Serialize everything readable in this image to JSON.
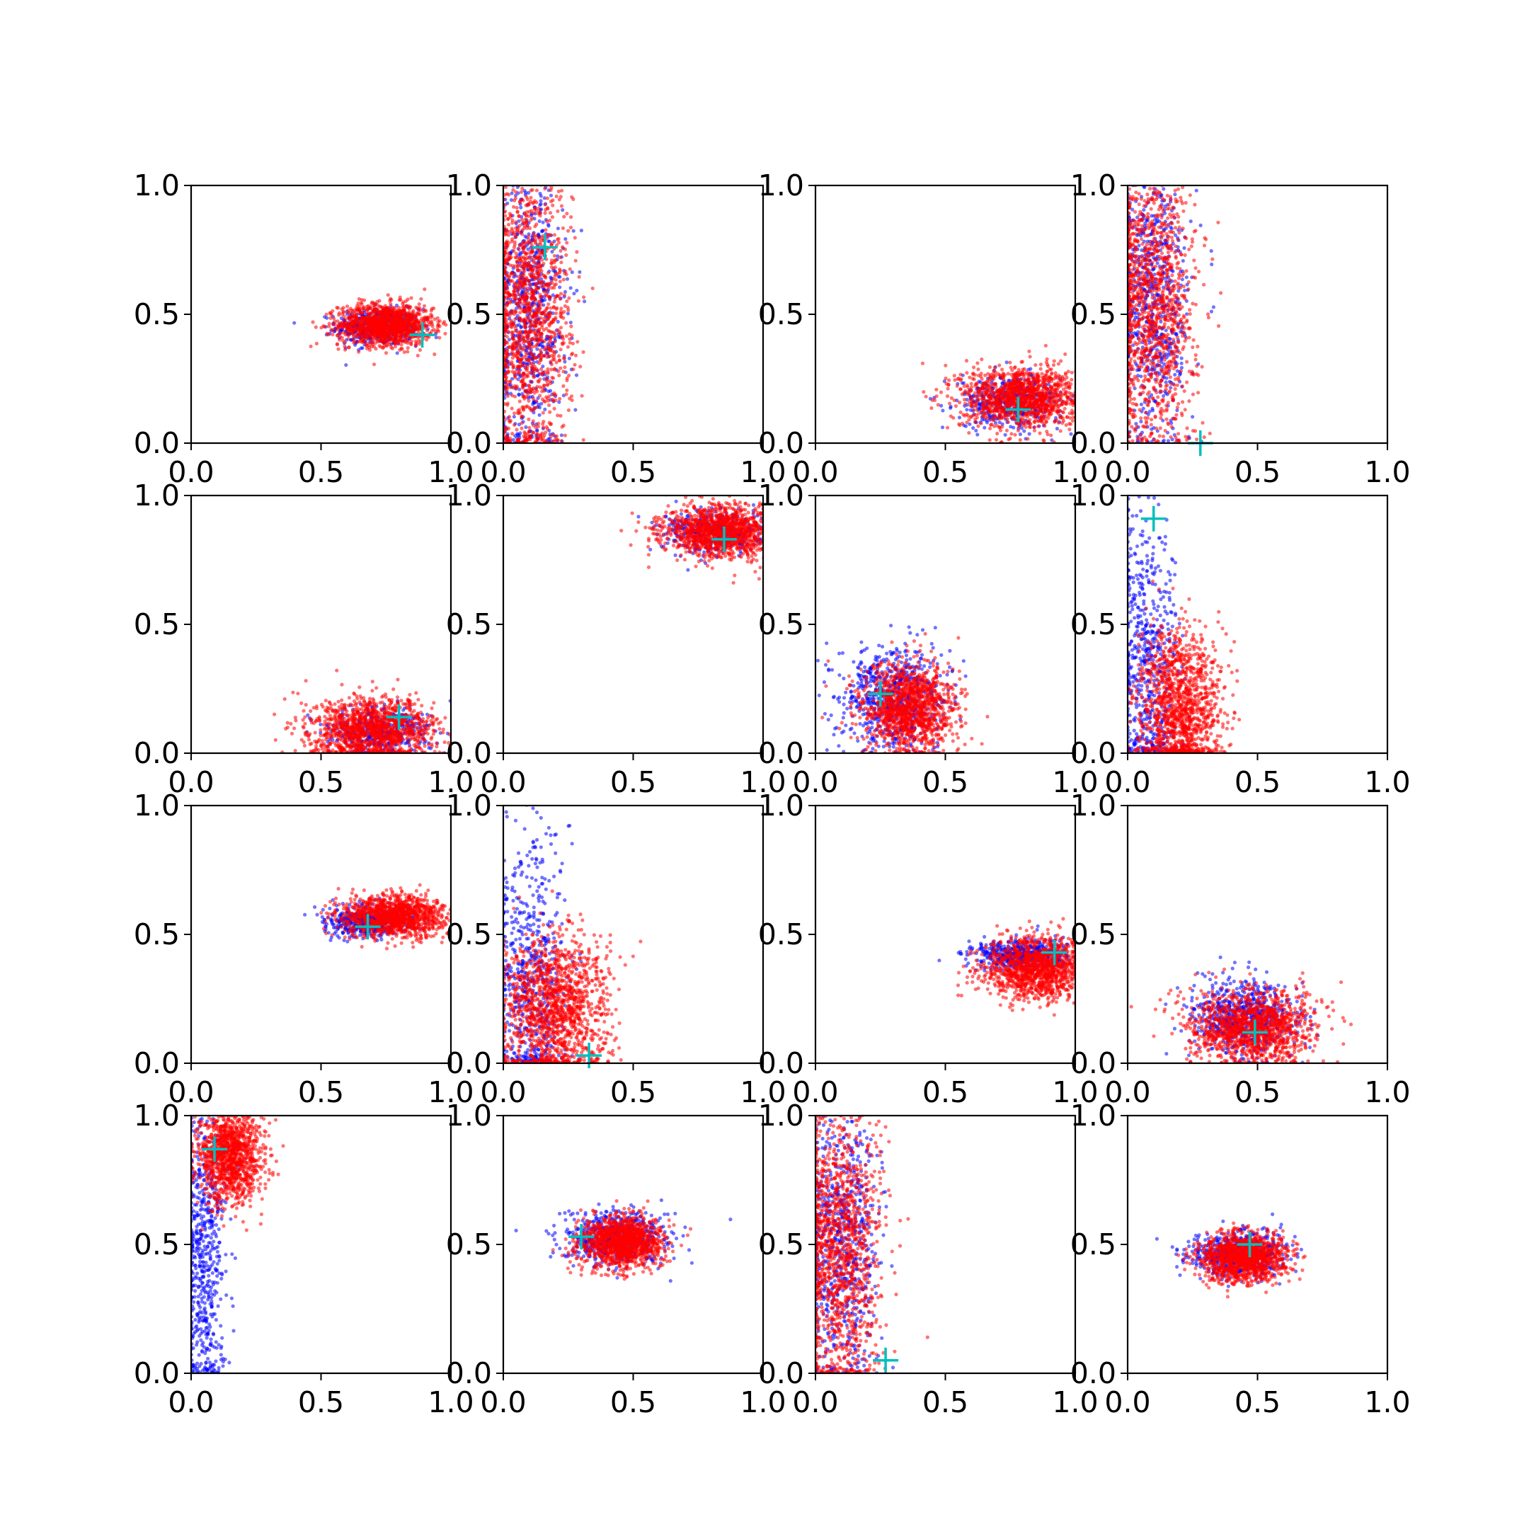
{
  "chart_data": {
    "type": "scatter",
    "layout": {
      "rows": 4,
      "cols": 4
    },
    "colors": {
      "series_a": "#0000ff",
      "series_b": "#ff0000",
      "marker": "#00bfbf"
    },
    "subplots": [
      {
        "xlim": [
          0,
          1
        ],
        "ylim": [
          0,
          1
        ],
        "xticks": [
          "0.0",
          "0.5",
          "1.0"
        ],
        "yticks": [
          "0.0",
          "0.5",
          "1.0"
        ],
        "series_a": {
          "center": [
            0.72,
            0.45
          ],
          "spread": [
            0.08,
            0.035
          ],
          "count": 500
        },
        "series_b": {
          "center": [
            0.75,
            0.46
          ],
          "spread": [
            0.09,
            0.04
          ],
          "count": 1300
        },
        "marker": [
          0.89,
          0.42
        ]
      },
      {
        "xlim": [
          0,
          1
        ],
        "ylim": [
          0,
          1
        ],
        "xticks": [
          "0.0",
          "0.5",
          "1.0"
        ],
        "yticks": [
          "0.0",
          "0.5",
          "1.0"
        ],
        "series_a": {
          "center": [
            0.1,
            0.5
          ],
          "spread": [
            0.07,
            0.28
          ],
          "count": 700
        },
        "series_b": {
          "center": [
            0.1,
            0.5
          ],
          "spread": [
            0.08,
            0.28
          ],
          "count": 1400
        },
        "marker": [
          0.16,
          0.76
        ]
      },
      {
        "xlim": [
          0,
          1
        ],
        "ylim": [
          0,
          1
        ],
        "xticks": [
          "0.0",
          "0.5",
          "1.0"
        ],
        "yticks": [
          "0.0",
          "0.5",
          "1.0"
        ],
        "series_a": {
          "center": [
            0.75,
            0.16
          ],
          "spread": [
            0.1,
            0.05
          ],
          "count": 450
        },
        "series_b": {
          "center": [
            0.8,
            0.18
          ],
          "spread": [
            0.12,
            0.06
          ],
          "count": 1300
        },
        "marker": [
          0.78,
          0.13
        ]
      },
      {
        "xlim": [
          0,
          1
        ],
        "ylim": [
          0,
          1
        ],
        "xticks": [
          "0.0",
          "0.5",
          "1.0"
        ],
        "yticks": [
          "0.0",
          "0.5",
          "1.0"
        ],
        "series_a": {
          "center": [
            0.1,
            0.55
          ],
          "spread": [
            0.07,
            0.28
          ],
          "count": 700
        },
        "series_b": {
          "center": [
            0.1,
            0.55
          ],
          "spread": [
            0.08,
            0.28
          ],
          "count": 1300
        },
        "marker": [
          0.28,
          0.0
        ]
      },
      {
        "xlim": [
          0,
          1
        ],
        "ylim": [
          0,
          1
        ],
        "xticks": [
          "0.0",
          "0.5",
          "1.0"
        ],
        "yticks": [
          "0.0",
          "0.5",
          "1.0"
        ],
        "series_a": {
          "center": [
            0.72,
            0.08
          ],
          "spread": [
            0.1,
            0.05
          ],
          "count": 450
        },
        "series_b": {
          "center": [
            0.7,
            0.09
          ],
          "spread": [
            0.12,
            0.06
          ],
          "count": 1300
        },
        "marker": [
          0.8,
          0.14
        ]
      },
      {
        "xlim": [
          0,
          1
        ],
        "ylim": [
          0,
          1
        ],
        "xticks": [
          "0.0",
          "0.5",
          "1.0"
        ],
        "yticks": [
          "0.0",
          "0.5",
          "1.0"
        ],
        "series_a": {
          "center": [
            0.82,
            0.86
          ],
          "spread": [
            0.1,
            0.04
          ],
          "count": 450
        },
        "series_b": {
          "center": [
            0.84,
            0.86
          ],
          "spread": [
            0.11,
            0.05
          ],
          "count": 1300
        },
        "marker": [
          0.85,
          0.83
        ]
      },
      {
        "xlim": [
          0,
          1
        ],
        "ylim": [
          0,
          1
        ],
        "xticks": [
          "0.0",
          "0.5",
          "1.0"
        ],
        "yticks": [
          "0.0",
          "0.5",
          "1.0"
        ],
        "series_a": {
          "center": [
            0.3,
            0.22
          ],
          "spread": [
            0.1,
            0.1
          ],
          "count": 700
        },
        "series_b": {
          "center": [
            0.36,
            0.17
          ],
          "spread": [
            0.09,
            0.09
          ],
          "count": 1300
        },
        "marker": [
          0.25,
          0.23
        ]
      },
      {
        "xlim": [
          0,
          1
        ],
        "ylim": [
          0,
          1
        ],
        "xticks": [
          "0.0",
          "0.5",
          "1.0"
        ],
        "yticks": [
          "0.0",
          "0.5",
          "1.0"
        ],
        "series_a": {
          "center": [
            0.08,
            0.35
          ],
          "spread": [
            0.06,
            0.3
          ],
          "count": 600
        },
        "series_b": {
          "center": [
            0.2,
            0.18
          ],
          "spread": [
            0.08,
            0.15
          ],
          "count": 1300
        },
        "marker": [
          0.1,
          0.91
        ]
      },
      {
        "xlim": [
          0,
          1
        ],
        "ylim": [
          0,
          1
        ],
        "xticks": [
          "0.0",
          "0.5",
          "1.0"
        ],
        "yticks": [
          "0.0",
          "0.5",
          "1.0"
        ],
        "series_a": {
          "center": [
            0.68,
            0.55
          ],
          "spread": [
            0.08,
            0.03
          ],
          "count": 450
        },
        "series_b": {
          "center": [
            0.78,
            0.57
          ],
          "spread": [
            0.1,
            0.04
          ],
          "count": 1300
        },
        "marker": [
          0.68,
          0.53
        ]
      },
      {
        "xlim": [
          0,
          1
        ],
        "ylim": [
          0,
          1
        ],
        "xticks": [
          "0.0",
          "0.5",
          "1.0"
        ],
        "yticks": [
          "0.0",
          "0.5",
          "1.0"
        ],
        "series_a": {
          "center": [
            0.1,
            0.35
          ],
          "spread": [
            0.07,
            0.3
          ],
          "count": 600
        },
        "series_b": {
          "center": [
            0.2,
            0.2
          ],
          "spread": [
            0.1,
            0.15
          ],
          "count": 1400
        },
        "marker": [
          0.33,
          0.03
        ]
      },
      {
        "xlim": [
          0,
          1
        ],
        "ylim": [
          0,
          1
        ],
        "xticks": [
          "0.0",
          "0.5",
          "1.0"
        ],
        "yticks": [
          "0.0",
          "0.5",
          "1.0"
        ],
        "series_a": {
          "center": [
            0.8,
            0.42
          ],
          "spread": [
            0.1,
            0.03
          ],
          "count": 500
        },
        "series_b": {
          "center": [
            0.85,
            0.37
          ],
          "spread": [
            0.1,
            0.06
          ],
          "count": 1300
        },
        "marker": [
          0.92,
          0.43
        ]
      },
      {
        "xlim": [
          0,
          1
        ],
        "ylim": [
          0,
          1
        ],
        "xticks": [
          "0.0",
          "0.5",
          "1.0"
        ],
        "yticks": [
          "0.0",
          "0.5",
          "1.0"
        ],
        "series_a": {
          "center": [
            0.45,
            0.18
          ],
          "spread": [
            0.1,
            0.07
          ],
          "count": 700
        },
        "series_b": {
          "center": [
            0.48,
            0.14
          ],
          "spread": [
            0.12,
            0.07
          ],
          "count": 1300
        },
        "marker": [
          0.49,
          0.12
        ]
      },
      {
        "xlim": [
          0,
          1
        ],
        "ylim": [
          0,
          1
        ],
        "xticks": [
          "0.0",
          "0.5",
          "1.0"
        ],
        "yticks": [
          "0.0",
          "0.5",
          "1.0"
        ],
        "series_a": {
          "center": [
            0.05,
            0.45
          ],
          "spread": [
            0.04,
            0.3
          ],
          "count": 600
        },
        "series_b": {
          "center": [
            0.15,
            0.85
          ],
          "spread": [
            0.06,
            0.1
          ],
          "count": 1300
        },
        "marker": [
          0.09,
          0.87
        ]
      },
      {
        "xlim": [
          0,
          1
        ],
        "ylim": [
          0,
          1
        ],
        "xticks": [
          "0.0",
          "0.5",
          "1.0"
        ],
        "yticks": [
          "0.0",
          "0.5",
          "1.0"
        ],
        "series_a": {
          "center": [
            0.44,
            0.52
          ],
          "spread": [
            0.1,
            0.05
          ],
          "count": 600
        },
        "series_b": {
          "center": [
            0.46,
            0.51
          ],
          "spread": [
            0.08,
            0.05
          ],
          "count": 1300
        },
        "marker": [
          0.3,
          0.53
        ]
      },
      {
        "xlim": [
          0,
          1
        ],
        "ylim": [
          0,
          1
        ],
        "xticks": [
          "0.0",
          "0.5",
          "1.0"
        ],
        "yticks": [
          "0.0",
          "0.5",
          "1.0"
        ],
        "series_a": {
          "center": [
            0.1,
            0.5
          ],
          "spread": [
            0.07,
            0.28
          ],
          "count": 700
        },
        "series_b": {
          "center": [
            0.1,
            0.5
          ],
          "spread": [
            0.08,
            0.28
          ],
          "count": 1300
        },
        "marker": [
          0.27,
          0.05
        ]
      },
      {
        "xlim": [
          0,
          1
        ],
        "ylim": [
          0,
          1
        ],
        "xticks": [
          "0.0",
          "0.5",
          "1.0"
        ],
        "yticks": [
          "0.0",
          "0.5",
          "1.0"
        ],
        "series_a": {
          "center": [
            0.42,
            0.46
          ],
          "spread": [
            0.09,
            0.045
          ],
          "count": 600
        },
        "series_b": {
          "center": [
            0.45,
            0.45
          ],
          "spread": [
            0.08,
            0.045
          ],
          "count": 1300
        },
        "marker": [
          0.47,
          0.5
        ]
      }
    ]
  }
}
